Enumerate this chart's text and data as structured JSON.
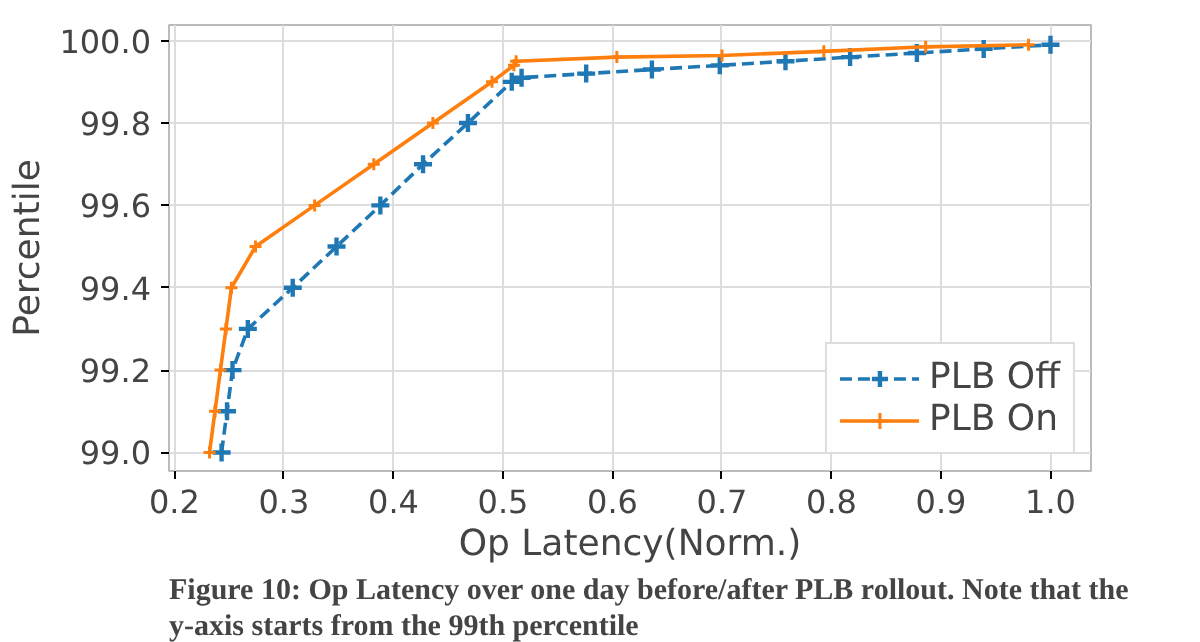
{
  "chart_data": {
    "type": "line",
    "xlabel": "Op Latency(Norm.)",
    "ylabel": "Percentile",
    "xlim": [
      0.195,
      1.037
    ],
    "ylim": [
      98.955,
      100.038
    ],
    "xticks": [
      {
        "value": 0.2,
        "label": "0.2"
      },
      {
        "value": 0.3,
        "label": "0.3"
      },
      {
        "value": 0.4,
        "label": "0.4"
      },
      {
        "value": 0.5,
        "label": "0.5"
      },
      {
        "value": 0.6,
        "label": "0.6"
      },
      {
        "value": 0.7,
        "label": "0.7"
      },
      {
        "value": 0.8,
        "label": "0.8"
      },
      {
        "value": 0.9,
        "label": "0.9"
      },
      {
        "value": 1.0,
        "label": "1.0"
      }
    ],
    "yticks": [
      {
        "value": 99.0,
        "label": "99.0"
      },
      {
        "value": 99.2,
        "label": "99.2"
      },
      {
        "value": 99.4,
        "label": "99.4"
      },
      {
        "value": 99.6,
        "label": "99.6"
      },
      {
        "value": 99.8,
        "label": "99.8"
      },
      {
        "value": 100.0,
        "label": "100.0"
      }
    ],
    "grid": true,
    "legend": "bottom right",
    "marker": "cross",
    "series": [
      {
        "name": "PLB Off",
        "color": "#1f77b4",
        "line_style": "dashed",
        "x": [
          0.243,
          0.248,
          0.253,
          0.267,
          0.308,
          0.348,
          0.388,
          0.427,
          0.468,
          0.508,
          0.517,
          0.576,
          0.636,
          0.698,
          0.758,
          0.817,
          0.878,
          0.939,
          1.0
        ],
        "values": [
          99.0,
          99.1,
          99.2,
          99.3,
          99.4,
          99.5,
          99.6,
          99.7,
          99.8,
          99.9,
          99.91,
          99.92,
          99.93,
          99.94,
          99.95,
          99.96,
          99.97,
          99.98,
          99.99
        ]
      },
      {
        "name": "PLB On",
        "color": "#ff7f0e",
        "line_style": "solid",
        "x": [
          0.232,
          0.237,
          0.242,
          0.247,
          0.252,
          0.274,
          0.328,
          0.382,
          0.436,
          0.49,
          0.51,
          0.512,
          0.604,
          0.7,
          0.793,
          0.886,
          0.98
        ],
        "values": [
          99.0,
          99.1,
          99.2,
          99.3,
          99.4,
          99.5,
          99.6,
          99.7,
          99.8,
          99.9,
          99.94,
          99.95,
          99.96,
          99.964,
          99.974,
          99.985,
          99.99
        ]
      }
    ],
    "annotations": [
      "Figure 10: Op Latency over one day before/after PLB rollout. Note that the y-axis starts from the 99th percentile"
    ]
  }
}
